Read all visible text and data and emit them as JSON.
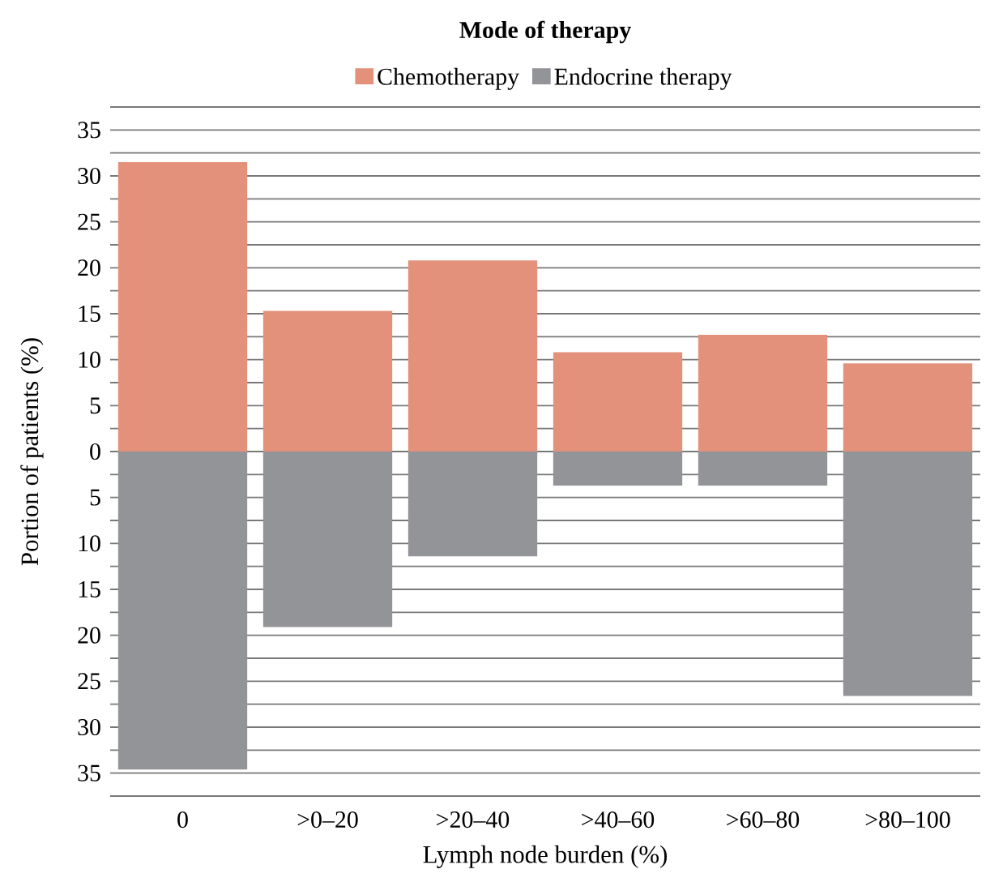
{
  "chart_data": {
    "type": "bar",
    "stacked": true,
    "title": "Mode of therapy",
    "xlabel": "Lymph node burden (%)",
    "ylabel": "Portion of patients (%)",
    "categories": [
      "0",
      ">0–20",
      ">20–40",
      ">40–60",
      ">60–80",
      ">80–100"
    ],
    "series": [
      {
        "name": "Chemotherapy",
        "color": "#e3917a",
        "values": [
          31.5,
          15.3,
          20.8,
          10.8,
          12.7,
          9.6
        ]
      },
      {
        "name": "Endocrine therapy",
        "color": "#939498",
        "values": [
          -34.6,
          -19.1,
          -11.4,
          -3.7,
          -3.7,
          -26.6
        ]
      }
    ],
    "ylim": [
      -37.5,
      37.5
    ],
    "yticks": [
      {
        "value": -37.5,
        "label": null
      },
      {
        "value": -35,
        "label": "35"
      },
      {
        "value": -32.5,
        "label": null
      },
      {
        "value": -30,
        "label": "30"
      },
      {
        "value": -27.5,
        "label": null
      },
      {
        "value": -25,
        "label": "25"
      },
      {
        "value": -22.5,
        "label": null
      },
      {
        "value": -20,
        "label": "20"
      },
      {
        "value": -17.5,
        "label": null
      },
      {
        "value": -15,
        "label": "15"
      },
      {
        "value": -12.5,
        "label": null
      },
      {
        "value": -10,
        "label": "10"
      },
      {
        "value": -7.5,
        "label": null
      },
      {
        "value": -5,
        "label": "5"
      },
      {
        "value": -2.5,
        "label": null
      },
      0,
      {
        "value": 2.5,
        "label": null
      },
      5,
      {
        "value": 7.5,
        "label": null
      },
      10,
      {
        "value": 12.5,
        "label": null
      },
      15,
      {
        "value": 17.5,
        "label": null
      },
      20,
      {
        "value": 22.5,
        "label": null
      },
      25,
      {
        "value": 27.5,
        "label": null
      },
      30,
      {
        "value": 32.5,
        "label": null
      },
      35,
      {
        "value": 37.5,
        "label": null
      }
    ],
    "grid": "y",
    "legend": "top"
  }
}
